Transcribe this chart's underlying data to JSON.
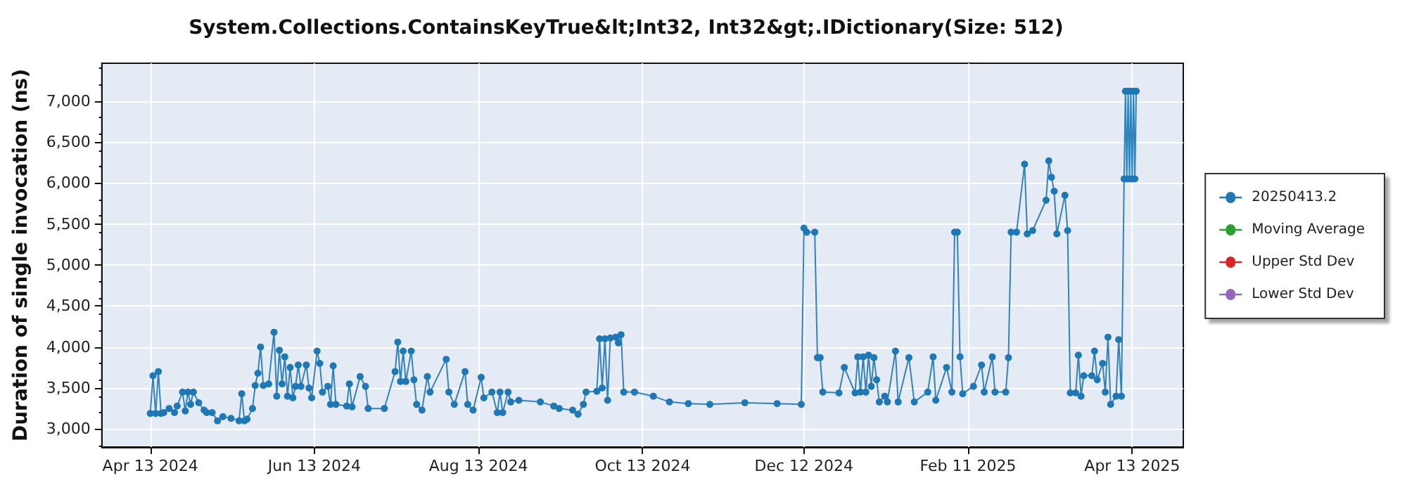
{
  "chart_data": {
    "type": "line",
    "title": "System.Collections.ContainsKeyTrue&lt;Int32, Int32&gt;.IDictionary(Size: 512)",
    "ylabel": "Duration of single invocation (ns)",
    "xlim": [
      "2024-03-26",
      "2025-05-02"
    ],
    "xticks": [
      {
        "value": "2024-04-13",
        "label": "Apr 13 2024"
      },
      {
        "value": "2024-06-13",
        "label": "Jun 13 2024"
      },
      {
        "value": "2024-08-13",
        "label": "Aug 13 2024"
      },
      {
        "value": "2024-10-13",
        "label": "Oct 13 2024"
      },
      {
        "value": "2024-12-12",
        "label": "Dec 12 2024"
      },
      {
        "value": "2025-02-11",
        "label": "Feb 11 2025"
      },
      {
        "value": "2025-04-13",
        "label": "Apr 13 2025"
      }
    ],
    "ylim": [
      2780,
      7460
    ],
    "yticks": [
      {
        "value": 3000,
        "label": "3,000"
      },
      {
        "value": 3500,
        "label": "3,500"
      },
      {
        "value": 4000,
        "label": "4,000"
      },
      {
        "value": 4500,
        "label": "4,500"
      },
      {
        "value": 5000,
        "label": "5,000"
      },
      {
        "value": 5500,
        "label": "5,500"
      },
      {
        "value": 6000,
        "label": "6,000"
      },
      {
        "value": 6500,
        "label": "6,500"
      },
      {
        "value": 7000,
        "label": "7,000"
      }
    ],
    "grid": true,
    "legend": "right",
    "marker": "circle",
    "line_style": "solid",
    "series": [
      {
        "name": "20250413.2",
        "color": "#1f77b4",
        "x": [
          "2024-04-13",
          "2024-04-14",
          "2024-04-15",
          "2024-04-16",
          "2024-04-17",
          "2024-04-18",
          "2024-04-20",
          "2024-04-22",
          "2024-04-23",
          "2024-04-25",
          "2024-04-26",
          "2024-04-27",
          "2024-04-28",
          "2024-04-29",
          "2024-05-01",
          "2024-05-03",
          "2024-05-04",
          "2024-05-06",
          "2024-05-08",
          "2024-05-10",
          "2024-05-13",
          "2024-05-16",
          "2024-05-17",
          "2024-05-18",
          "2024-05-19",
          "2024-05-21",
          "2024-05-22",
          "2024-05-23",
          "2024-05-24",
          "2024-05-25",
          "2024-05-27",
          "2024-05-29",
          "2024-05-30",
          "2024-05-31",
          "2024-06-01",
          "2024-06-02",
          "2024-06-03",
          "2024-06-04",
          "2024-06-05",
          "2024-06-06",
          "2024-06-07",
          "2024-06-08",
          "2024-06-10",
          "2024-06-11",
          "2024-06-12",
          "2024-06-14",
          "2024-06-15",
          "2024-06-16",
          "2024-06-18",
          "2024-06-19",
          "2024-06-20",
          "2024-06-21",
          "2024-06-25",
          "2024-06-26",
          "2024-06-27",
          "2024-06-30",
          "2024-07-02",
          "2024-07-03",
          "2024-07-09",
          "2024-07-13",
          "2024-07-14",
          "2024-07-15",
          "2024-07-16",
          "2024-07-17",
          "2024-07-19",
          "2024-07-20",
          "2024-07-21",
          "2024-07-23",
          "2024-07-25",
          "2024-07-26",
          "2024-08-01",
          "2024-08-02",
          "2024-08-04",
          "2024-08-08",
          "2024-08-09",
          "2024-08-11",
          "2024-08-14",
          "2024-08-15",
          "2024-08-18",
          "2024-08-20",
          "2024-08-21",
          "2024-08-22",
          "2024-08-24",
          "2024-08-25",
          "2024-08-28",
          "2024-09-05",
          "2024-09-10",
          "2024-09-12",
          "2024-09-17",
          "2024-09-19",
          "2024-09-21",
          "2024-09-22",
          "2024-09-26",
          "2024-09-27",
          "2024-09-28",
          "2024-09-29",
          "2024-09-30",
          "2024-10-01",
          "2024-10-03",
          "2024-10-04",
          "2024-10-05",
          "2024-10-06",
          "2024-10-10",
          "2024-10-17",
          "2024-10-23",
          "2024-10-30",
          "2024-11-07",
          "2024-11-20",
          "2024-12-02",
          "2024-12-11",
          "2024-12-12",
          "2024-12-13",
          "2024-12-16",
          "2024-12-17",
          "2024-12-18",
          "2024-12-19",
          "2024-12-25",
          "2024-12-27",
          "2024-12-31",
          "2025-01-01",
          "2025-01-02",
          "2025-01-03",
          "2025-01-04",
          "2025-01-05",
          "2025-01-06",
          "2025-01-07",
          "2025-01-08",
          "2025-01-09",
          "2025-01-11",
          "2025-01-12",
          "2025-01-15",
          "2025-01-16",
          "2025-01-20",
          "2025-01-22",
          "2025-01-27",
          "2025-01-29",
          "2025-01-30",
          "2025-02-03",
          "2025-02-05",
          "2025-02-06",
          "2025-02-07",
          "2025-02-08",
          "2025-02-09",
          "2025-02-13",
          "2025-02-16",
          "2025-02-17",
          "2025-02-20",
          "2025-02-21",
          "2025-02-25",
          "2025-02-26",
          "2025-02-27",
          "2025-03-01",
          "2025-03-04",
          "2025-03-05",
          "2025-03-07",
          "2025-03-12",
          "2025-03-13",
          "2025-03-14",
          "2025-03-15",
          "2025-03-16",
          "2025-03-19",
          "2025-03-20",
          "2025-03-21",
          "2025-03-23",
          "2025-03-24",
          "2025-03-25",
          "2025-03-26",
          "2025-03-29",
          "2025-03-30",
          "2025-03-31",
          "2025-04-02",
          "2025-04-03",
          "2025-04-04",
          "2025-04-05",
          "2025-04-07",
          "2025-04-08",
          "2025-04-09",
          "2025-04-10",
          "2025-04-10T12:00",
          "2025-04-11",
          "2025-04-11T12:00",
          "2025-04-12",
          "2025-04-12T12:00",
          "2025-04-13",
          "2025-04-13T12:00",
          "2025-04-14",
          "2025-04-14T12:00"
        ],
        "values": [
          3190,
          3650,
          3190,
          3700,
          3190,
          3200,
          3250,
          3200,
          3280,
          3450,
          3220,
          3450,
          3300,
          3450,
          3320,
          3230,
          3200,
          3200,
          3100,
          3150,
          3130,
          3100,
          3430,
          3100,
          3120,
          3250,
          3530,
          3680,
          4000,
          3530,
          3550,
          4180,
          3400,
          3960,
          3550,
          3880,
          3400,
          3750,
          3380,
          3520,
          3780,
          3520,
          3780,
          3500,
          3380,
          3950,
          3800,
          3450,
          3520,
          3300,
          3770,
          3300,
          3280,
          3550,
          3270,
          3640,
          3520,
          3250,
          3250,
          3700,
          4060,
          3580,
          3950,
          3580,
          3950,
          3600,
          3300,
          3230,
          3640,
          3450,
          3850,
          3450,
          3300,
          3700,
          3300,
          3230,
          3630,
          3380,
          3450,
          3200,
          3450,
          3200,
          3450,
          3330,
          3350,
          3330,
          3280,
          3250,
          3230,
          3180,
          3300,
          3450,
          3460,
          4100,
          3500,
          4100,
          3350,
          4110,
          4120,
          4050,
          4150,
          3450,
          3450,
          3400,
          3330,
          3310,
          3300,
          3320,
          3310,
          3300,
          5450,
          5400,
          5400,
          3870,
          3870,
          3450,
          3440,
          3750,
          3440,
          3880,
          3450,
          3880,
          3450,
          3900,
          3520,
          3870,
          3600,
          3330,
          3400,
          3330,
          3950,
          3330,
          3870,
          3330,
          3450,
          3880,
          3350,
          3750,
          3450,
          5400,
          5400,
          3880,
          3430,
          3520,
          3780,
          3450,
          3880,
          3450,
          3450,
          3870,
          5400,
          5400,
          6230,
          5380,
          5420,
          5790,
          6270,
          6070,
          5900,
          5380,
          5850,
          5420,
          3440,
          3440,
          3900,
          3400,
          3650,
          3650,
          3950,
          3600,
          3800,
          3450,
          4120,
          3300,
          3400,
          4090,
          3400,
          6050,
          7120,
          6050,
          7120,
          6050,
          7120,
          6050,
          7120,
          6050,
          7120
        ]
      },
      {
        "name": "Moving Average",
        "color": "#2ca02c"
      },
      {
        "name": "Upper Std Dev",
        "color": "#d62728"
      },
      {
        "name": "Lower Std Dev",
        "color": "#9467bd"
      }
    ]
  }
}
